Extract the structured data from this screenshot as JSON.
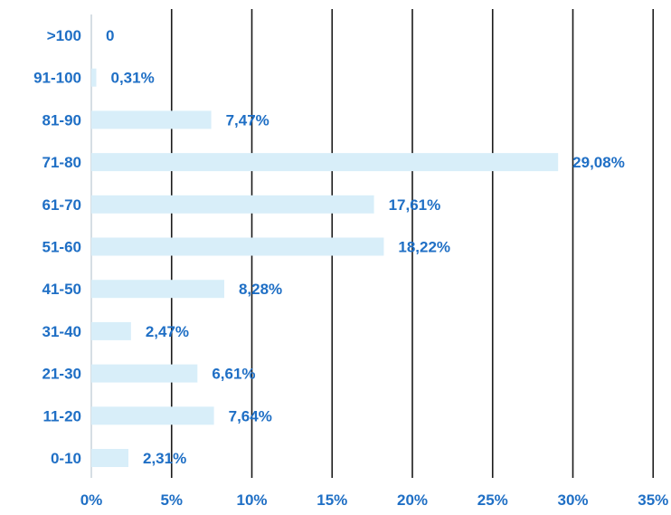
{
  "chart_data": {
    "type": "bar",
    "orientation": "horizontal",
    "title": "",
    "xlabel": "",
    "ylabel": "",
    "categories": [
      "0-10",
      "11-20",
      "21-30",
      "31-40",
      "41-50",
      "51-60",
      "61-70",
      "71-80",
      "81-90",
      "91-100",
      ">100"
    ],
    "values": [
      2.31,
      7.64,
      6.61,
      2.47,
      8.28,
      18.22,
      17.61,
      29.08,
      7.47,
      0.31,
      0
    ],
    "value_labels": [
      "2,31%",
      "7,64%",
      "6,61%",
      "2,47%",
      "8,28%",
      "18,22%",
      "17,61%",
      "29,08%",
      "7,47%",
      "0,31%",
      "0"
    ],
    "xlim": [
      0,
      35
    ],
    "x_ticks": [
      0,
      5,
      10,
      15,
      20,
      25,
      30,
      35
    ],
    "x_tick_labels": [
      "0%",
      "5%",
      "10%",
      "15%",
      "20%",
      "25%",
      "30%",
      "35%"
    ],
    "grid": true,
    "legend": "none",
    "colors": {
      "bar": "#d8eef9",
      "label": "#1f6fc5",
      "grid": "#1a1a1a",
      "axis": "#c9d3dc"
    }
  }
}
